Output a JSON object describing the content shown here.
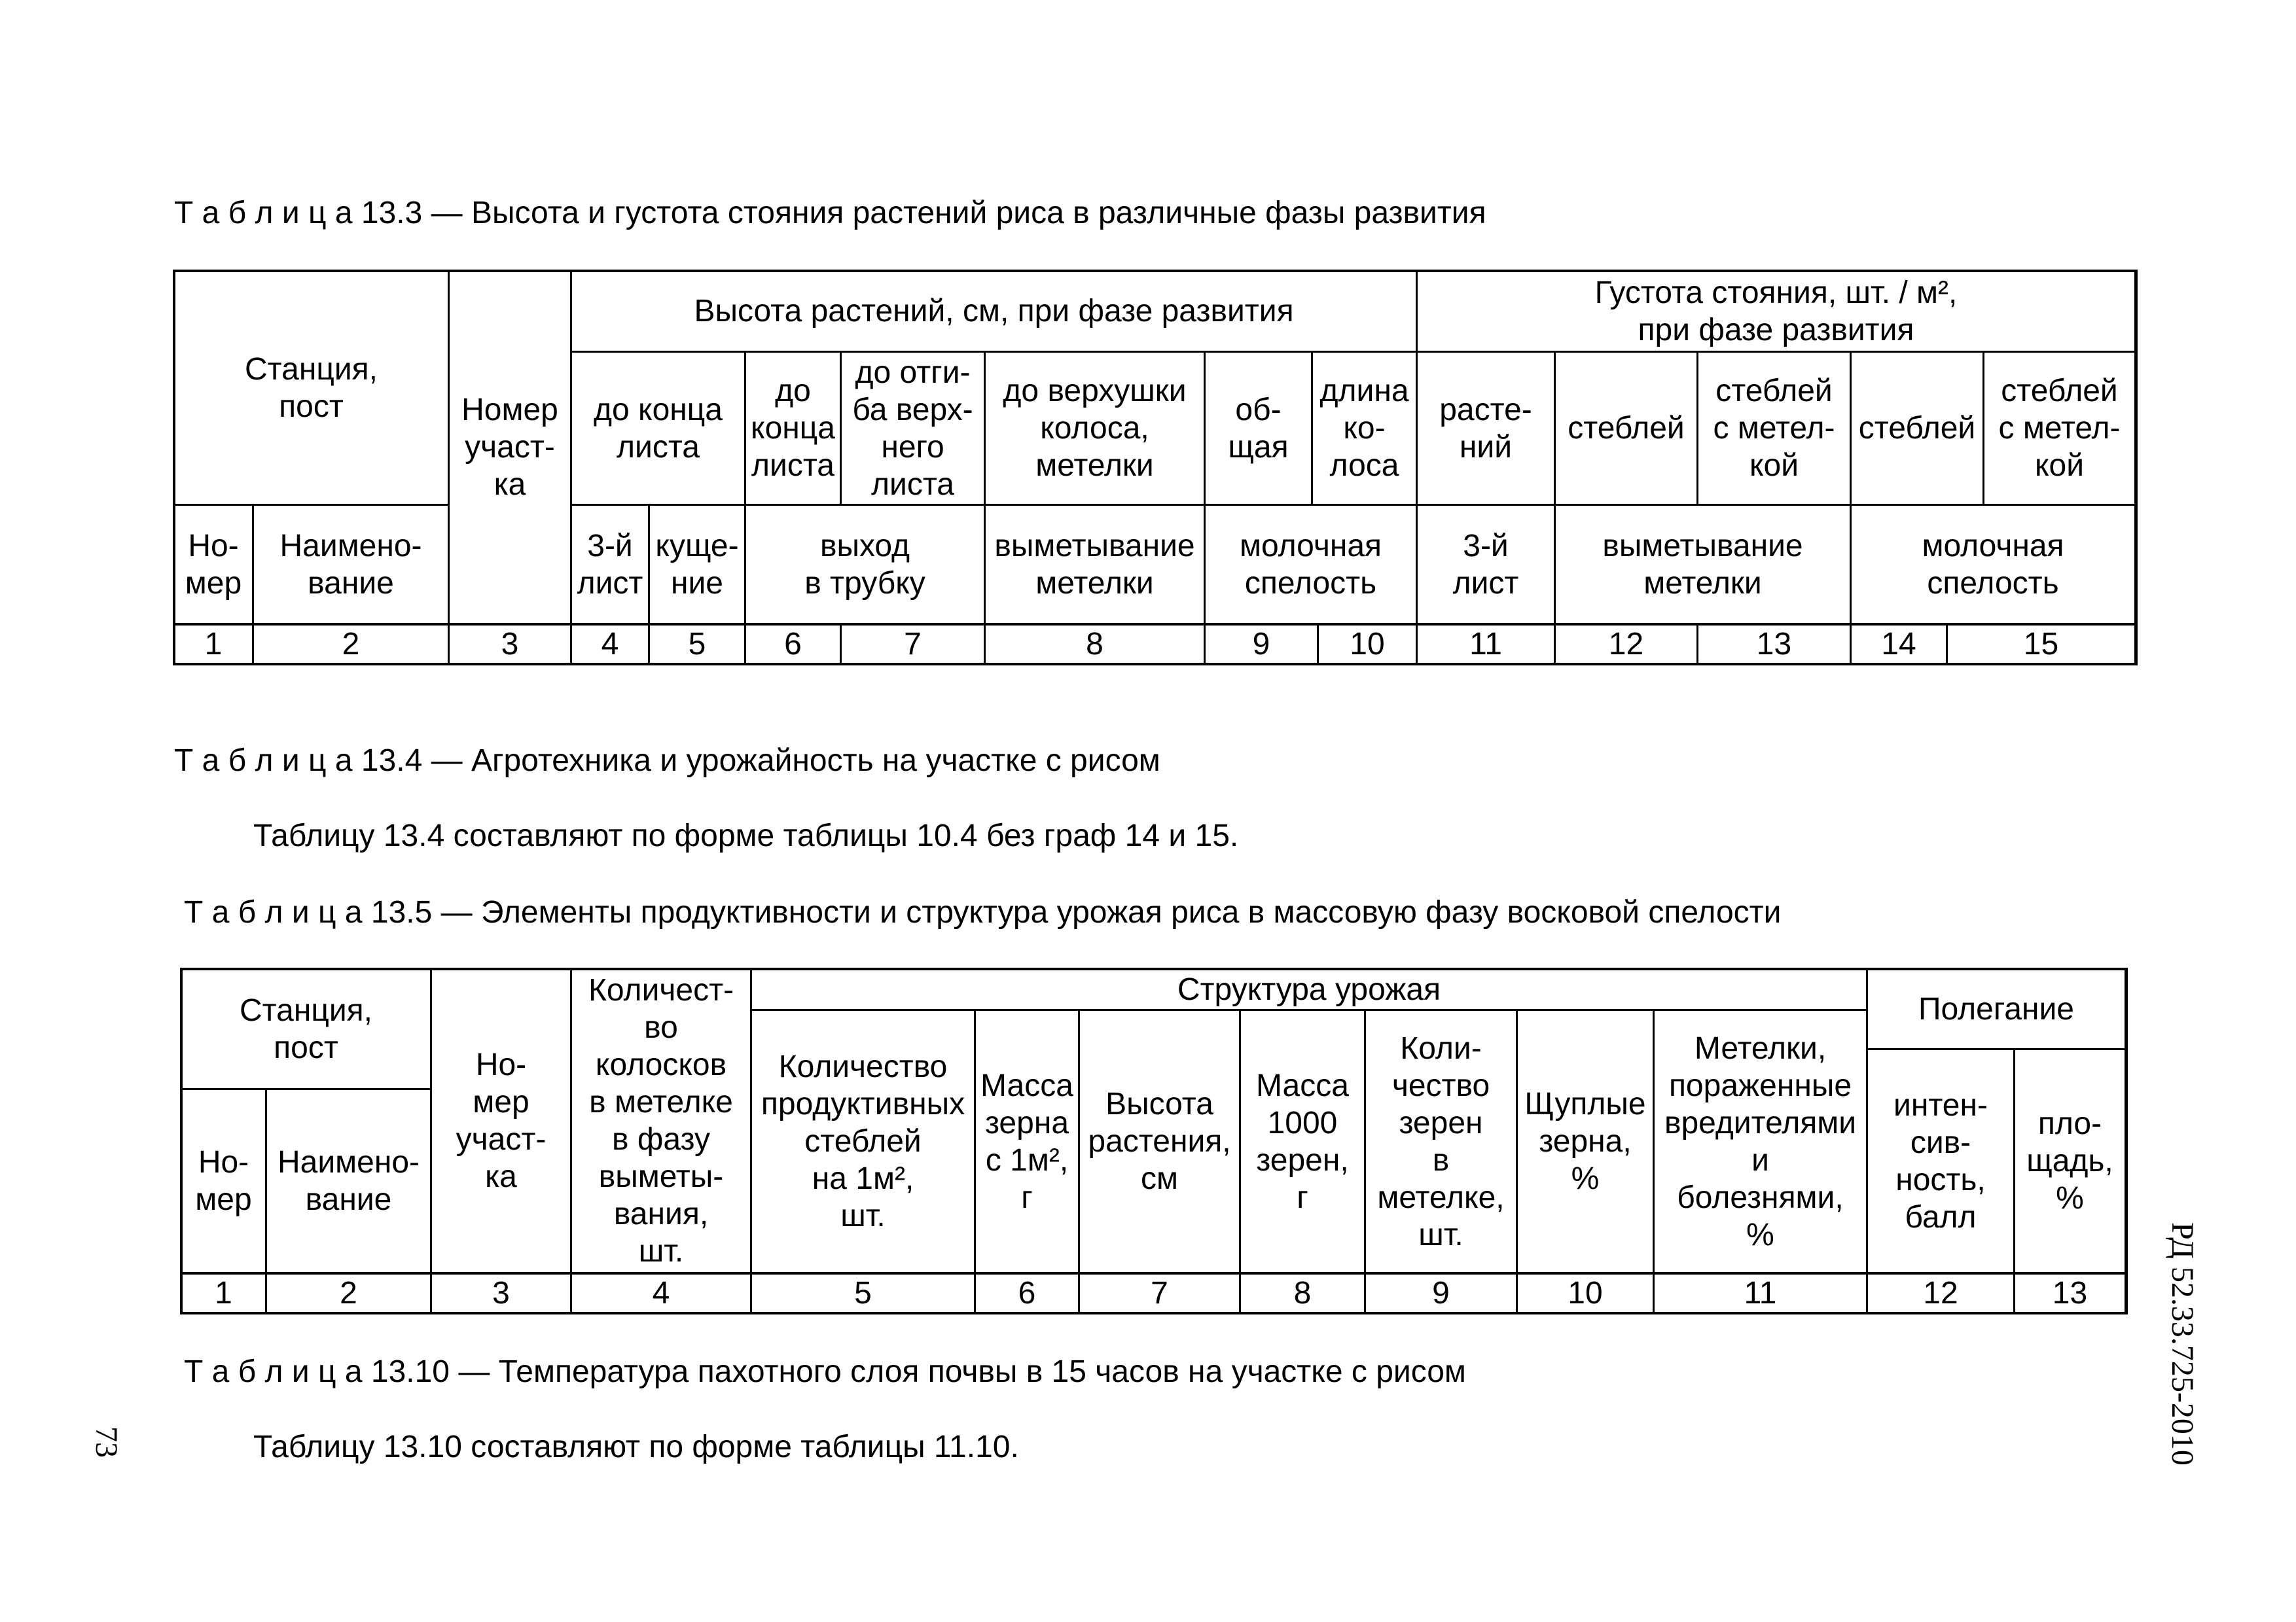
{
  "t133": {
    "title": "Т а б л и ц а 13.3 — Высота и густота стояния растений риса в различные фазы развития",
    "station": "Станция,\nпост",
    "plot_no": "Номер\nучаст-\nка",
    "num": "Но-\nмер",
    "name": "Наимено-\nвание",
    "height_group": "Высота растений, см, при фазе развития",
    "density_group": "Густота стояния, шт. / м²,\nпри фазе развития",
    "h1": "до конца\nлиста",
    "h2": "до\nконца\nлиста",
    "h3": "до отги-\nба верх-\nнего\nлиста",
    "h4": "до верхушки\nколоса,\nметелки",
    "h5": "об-\nщая",
    "h6": "длина\nко-\nлоса",
    "d1": "расте-\nний",
    "d2": "стеблей",
    "d3": "стеблей\nс метел-\nкой",
    "d4": "стеблей",
    "d5": "стеблей\nс метел-\nкой",
    "p1": "3-й\nлист",
    "p2": "куще-\nние",
    "p3": "выход\nв трубку",
    "p4": "выметывание\nметелки",
    "p5": "молочная\nспелость",
    "p6": "3-й\nлист",
    "p7": "выметывание\nметелки",
    "p8": "молочная\nспелость",
    "numbers": [
      "1",
      "2",
      "3",
      "4",
      "5",
      "6",
      "7",
      "8",
      "9",
      "10",
      "11",
      "12",
      "13",
      "14",
      "15"
    ]
  },
  "t134": {
    "title": "Т а б л и ц а 13.4  — Агротехника и урожайность на участке с рисом",
    "note": "Таблицу 13.4 составляют по форме таблицы 10.4 без граф 14 и 15."
  },
  "t135": {
    "title": "Т а б л и ц а 13.5 — Элементы продуктивности и структура урожая риса в массовую фазу восковой спелости",
    "station": "Станция,\nпост",
    "num": "Но-\nмер",
    "name": "Наимено-\nвание",
    "plot_no": "Но-\nмер\nучаст-\nка",
    "spikelets": "Количест-\nво\nколосков\nв метелке\nв фазу\nвыметы-\nвания,\nшт.",
    "structure": "Структура урожая",
    "s1": "Количество\nпродуктивных\nстеблей\nна 1м²,\nшт.",
    "s2": "Масса\nзерна\nс 1м²,\nг",
    "s3": "Высота\nрастения,\nсм",
    "s4": "Масса\n1000\nзерен,\nг",
    "s5": "Коли-\nчество\nзерен\nв\nметелке,\nшт.",
    "s6": "Щуплые\nзерна,\n%",
    "s7": "Метелки,\nпораженные\nвредителями\nи\nболезнями,\n%",
    "lodging": "Полегание",
    "l1": "интен-\nсив-\nность,\nбалл",
    "l2": "пло-\nщадь,\n%",
    "numbers": [
      "1",
      "2",
      "3",
      "4",
      "5",
      "6",
      "7",
      "8",
      "9",
      "10",
      "11",
      "12",
      "13"
    ]
  },
  "t1310": {
    "title": "Т а б л и ц а 13.10 — Температура пахотного слоя почвы в 15 часов на участке с рисом",
    "note": "Таблицу 13.10 составляют по форме таблицы 11.10."
  },
  "page": {
    "number": "73",
    "doc_code": "РД 52.33.725-2010"
  }
}
